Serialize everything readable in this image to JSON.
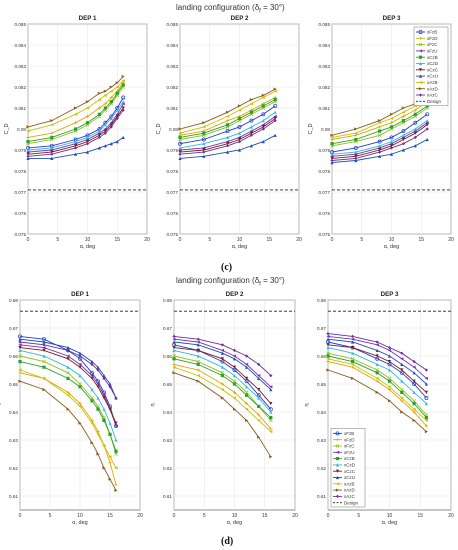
{
  "figure": {
    "top_title": "landing configuration (δ",
    "top_title_sub": "f",
    "top_title_end": " = 30°)",
    "top_label": "(c)",
    "bottom_title": "landing configuration (δ",
    "bottom_title_sub": "f",
    "bottom_title_end": " = 30°)",
    "bottom_label": "(d)"
  },
  "colors": {
    "xFzB": "#1f3fd1",
    "xFzD": "#e0a800",
    "xFzC": "#8fc31f",
    "xFzU": "#7b2fb5",
    "xCzB": "#2ca02c",
    "xCzD": "#33b7e8",
    "xCzC": "#7a1f1f",
    "xCzU": "#1f4fb5",
    "xAzB": "#c9c300",
    "xAzD": "#8a5a1f",
    "xAzC": "#6a2fa0",
    "design": "#222222"
  },
  "chart_data": [
    {
      "type": "line",
      "panel": "c",
      "title": "DEP 1",
      "xlabel": "α, deg",
      "ylabel": "C_D",
      "xlim": [
        0,
        20
      ],
      "ylim": [
        0.075,
        0.085
      ],
      "xticks": [
        "0",
        "5",
        "10",
        "15",
        "20"
      ],
      "yticks": [
        "0.075",
        "0.076",
        "0.077",
        "0.078",
        "0.079",
        "0.08",
        "0.081",
        "0.082",
        "0.083",
        "0.084",
        "0.085"
      ],
      "grid": true,
      "x": [
        0,
        4,
        8,
        10,
        12,
        13,
        14,
        15,
        16
      ],
      "series": [
        {
          "name": "xFzB",
          "values": [
            0.0791,
            0.0792,
            0.0795,
            0.0797,
            0.08,
            0.0803,
            0.0806,
            0.081,
            0.0815
          ]
        },
        {
          "name": "xFzD",
          "values": [
            0.0796,
            0.0798,
            0.0803,
            0.0806,
            0.081,
            0.0812,
            0.0815,
            0.0818,
            0.0822
          ]
        },
        {
          "name": "xFzC",
          "values": [
            0.0793,
            0.0795,
            0.0799,
            0.0802,
            0.0806,
            0.0809,
            0.0812,
            0.0816,
            0.082
          ]
        },
        {
          "name": "xFzU",
          "values": [
            0.0789,
            0.079,
            0.0793,
            0.0795,
            0.0798,
            0.08,
            0.0803,
            0.0807,
            0.0812
          ]
        },
        {
          "name": "xCzB",
          "values": [
            0.0794,
            0.0796,
            0.08,
            0.0803,
            0.0807,
            0.081,
            0.0813,
            0.0817,
            0.0821
          ]
        },
        {
          "name": "xCzD",
          "values": [
            0.079,
            0.0791,
            0.0794,
            0.0796,
            0.0799,
            0.0802,
            0.0805,
            0.0809,
            0.0813
          ]
        },
        {
          "name": "xCzC",
          "values": [
            0.0788,
            0.0789,
            0.0792,
            0.0794,
            0.0797,
            0.0799,
            0.0802,
            0.0806,
            0.081
          ]
        },
        {
          "name": "xCzU",
          "values": [
            0.0786,
            0.0786,
            0.0788,
            0.0789,
            0.0791,
            0.0792,
            0.0793,
            0.0794,
            0.0796
          ]
        },
        {
          "name": "xAzB",
          "values": [
            0.0799,
            0.0802,
            0.0807,
            0.081,
            0.0814,
            0.0816,
            0.0818,
            0.082,
            0.0823
          ]
        },
        {
          "name": "xAzD",
          "values": [
            0.0801,
            0.0804,
            0.081,
            0.0813,
            0.0817,
            0.0818,
            0.082,
            0.0822,
            0.0825
          ]
        },
        {
          "name": "xAzC",
          "values": [
            0.0787,
            0.0788,
            0.0791,
            0.0793,
            0.0796,
            0.0798,
            0.0801,
            0.0805,
            0.0809
          ]
        }
      ],
      "design": 0.0771
    },
    {
      "type": "line",
      "panel": "c",
      "title": "DEP 2",
      "xlabel": "α, deg",
      "ylabel": "C_D",
      "xlim": [
        0,
        20
      ],
      "ylim": [
        0.075,
        0.085
      ],
      "xticks": [
        "0",
        "5",
        "10",
        "15",
        "20"
      ],
      "yticks": [
        "0.075",
        "0.076",
        "0.077",
        "0.078",
        "0.079",
        "0.08",
        "0.081",
        "0.082",
        "0.083",
        "0.084",
        "0.085"
      ],
      "grid": true,
      "x": [
        0,
        4,
        8,
        10,
        12,
        14,
        16
      ],
      "series": [
        {
          "name": "xFzB",
          "values": [
            0.0793,
            0.0795,
            0.0799,
            0.0801,
            0.0804,
            0.0807,
            0.0811
          ]
        },
        {
          "name": "xFzD",
          "values": [
            0.0797,
            0.0799,
            0.0804,
            0.0806,
            0.0809,
            0.0812,
            0.0815
          ]
        },
        {
          "name": "xFzC",
          "values": [
            0.0795,
            0.0797,
            0.0801,
            0.0804,
            0.0807,
            0.081,
            0.0813
          ]
        },
        {
          "name": "xFzU",
          "values": [
            0.079,
            0.0791,
            0.0794,
            0.0796,
            0.0799,
            0.0802,
            0.0806
          ]
        },
        {
          "name": "xCzB",
          "values": [
            0.0796,
            0.0798,
            0.0802,
            0.0805,
            0.0808,
            0.0811,
            0.0814
          ]
        },
        {
          "name": "xCzD",
          "values": [
            0.0791,
            0.0793,
            0.0796,
            0.0798,
            0.0801,
            0.0804,
            0.0808
          ]
        },
        {
          "name": "xCzC",
          "values": [
            0.0789,
            0.079,
            0.0793,
            0.0795,
            0.0798,
            0.0801,
            0.0805
          ]
        },
        {
          "name": "xCzU",
          "values": [
            0.0786,
            0.0787,
            0.0789,
            0.079,
            0.0792,
            0.0794,
            0.0797
          ]
        },
        {
          "name": "xAzB",
          "values": [
            0.0798,
            0.0801,
            0.0806,
            0.0809,
            0.0812,
            0.0815,
            0.0818
          ]
        },
        {
          "name": "xAzD",
          "values": [
            0.08,
            0.0803,
            0.0808,
            0.0811,
            0.0814,
            0.0816,
            0.0819
          ]
        },
        {
          "name": "xAzC",
          "values": [
            0.0788,
            0.0789,
            0.0792,
            0.0794,
            0.0797,
            0.08,
            0.0804
          ]
        }
      ],
      "design": 0.0771
    },
    {
      "type": "line",
      "panel": "c",
      "title": "DEP 3",
      "xlabel": "α, deg",
      "ylabel": "C_D",
      "xlim": [
        0,
        20
      ],
      "ylim": [
        0.075,
        0.085
      ],
      "xticks": [
        "0",
        "5",
        "10",
        "15",
        "20"
      ],
      "yticks": [
        "0.075",
        "0.076",
        "0.077",
        "0.078",
        "0.079",
        "0.08",
        "0.081",
        "0.082",
        "0.083",
        "0.084",
        "0.085"
      ],
      "grid": true,
      "legend": "top-right",
      "x": [
        0,
        4,
        8,
        10,
        12,
        14,
        16
      ],
      "series": [
        {
          "name": "xFzB",
          "values": [
            0.0789,
            0.0791,
            0.0794,
            0.0796,
            0.0799,
            0.0803,
            0.0807
          ]
        },
        {
          "name": "xFzD",
          "values": [
            0.0795,
            0.0797,
            0.0801,
            0.0803,
            0.0806,
            0.0809,
            0.0813
          ]
        },
        {
          "name": "xFzC",
          "values": [
            0.0792,
            0.0794,
            0.0797,
            0.08,
            0.0803,
            0.0806,
            0.081
          ]
        },
        {
          "name": "xFzU",
          "values": [
            0.0787,
            0.0788,
            0.0791,
            0.0793,
            0.0796,
            0.0799,
            0.0803
          ]
        },
        {
          "name": "xCzB",
          "values": [
            0.0793,
            0.0795,
            0.0799,
            0.0801,
            0.0804,
            0.0807,
            0.0811
          ]
        },
        {
          "name": "xCzD",
          "values": [
            0.0788,
            0.0789,
            0.0792,
            0.0794,
            0.0797,
            0.08,
            0.0804
          ]
        },
        {
          "name": "xCzC",
          "values": [
            0.0786,
            0.0787,
            0.079,
            0.0792,
            0.0795,
            0.0798,
            0.0802
          ]
        },
        {
          "name": "xCzU",
          "values": [
            0.0784,
            0.0785,
            0.0787,
            0.0788,
            0.079,
            0.0792,
            0.0795
          ]
        },
        {
          "name": "xAzB",
          "values": [
            0.0796,
            0.0798,
            0.0803,
            0.0805,
            0.0808,
            0.0811,
            0.0814
          ]
        },
        {
          "name": "xAzD",
          "values": [
            0.0797,
            0.08,
            0.0804,
            0.0807,
            0.081,
            0.0812,
            0.0815
          ]
        },
        {
          "name": "xAzC",
          "values": [
            0.0785,
            0.0786,
            0.0789,
            0.0791,
            0.0793,
            0.0796,
            0.08
          ]
        }
      ],
      "design": 0.0771,
      "legend_design_label": "Design"
    },
    {
      "type": "line",
      "panel": "d",
      "title": "DEP 1",
      "xlabel": "α, deg",
      "ylabel": "η",
      "xlim": [
        0,
        20
      ],
      "ylim": [
        0.605,
        0.68
      ],
      "xticks": [
        "0",
        "5",
        "10",
        "15",
        "20"
      ],
      "yticks": [
        "0.61",
        "0.62",
        "0.63",
        "0.64",
        "0.65",
        "0.66",
        "0.67",
        "0.68"
      ],
      "grid": true,
      "x": [
        0,
        4,
        8,
        10,
        12,
        13,
        14,
        15,
        16
      ],
      "series": [
        {
          "name": "xFzB",
          "values": [
            0.667,
            0.666,
            0.662,
            0.659,
            0.654,
            0.651,
            0.647,
            0.642,
            0.635
          ]
        },
        {
          "name": "xFzD",
          "values": [
            0.654,
            0.652,
            0.647,
            0.643,
            0.637,
            0.633,
            0.628,
            0.622,
            0.614
          ]
        },
        {
          "name": "xFzC",
          "values": [
            0.66,
            0.658,
            0.654,
            0.65,
            0.645,
            0.642,
            0.638,
            0.632,
            0.625
          ]
        },
        {
          "name": "xFzU",
          "values": [
            0.664,
            0.663,
            0.66,
            0.657,
            0.653,
            0.65,
            0.646,
            0.641,
            0.635
          ]
        },
        {
          "name": "xCzB",
          "values": [
            0.658,
            0.656,
            0.652,
            0.649,
            0.644,
            0.641,
            0.637,
            0.632,
            0.626
          ]
        },
        {
          "name": "xCzD",
          "values": [
            0.662,
            0.66,
            0.656,
            0.653,
            0.648,
            0.645,
            0.641,
            0.636,
            0.63
          ]
        },
        {
          "name": "xCzC",
          "values": [
            0.663,
            0.662,
            0.659,
            0.656,
            0.652,
            0.649,
            0.645,
            0.641,
            0.636
          ]
        },
        {
          "name": "xCzU",
          "values": [
            0.666,
            0.665,
            0.663,
            0.661,
            0.658,
            0.656,
            0.653,
            0.65,
            0.645
          ]
        },
        {
          "name": "xAzB",
          "values": [
            0.655,
            0.652,
            0.646,
            0.642,
            0.636,
            0.632,
            0.628,
            0.624,
            0.62
          ]
        },
        {
          "name": "xAzD",
          "values": [
            0.651,
            0.648,
            0.641,
            0.636,
            0.629,
            0.625,
            0.62,
            0.616,
            0.612
          ]
        },
        {
          "name": "xAzC",
          "values": [
            0.665,
            0.664,
            0.662,
            0.66,
            0.657,
            0.655,
            0.652,
            0.649,
            0.645
          ]
        }
      ],
      "design": 0.676
    },
    {
      "type": "line",
      "panel": "d",
      "title": "DEP 2",
      "xlabel": "α, deg",
      "ylabel": "η",
      "xlim": [
        0,
        20
      ],
      "ylim": [
        0.605,
        0.68
      ],
      "xticks": [
        "0",
        "5",
        "10",
        "15",
        "20"
      ],
      "yticks": [
        "0.61",
        "0.62",
        "0.63",
        "0.64",
        "0.65",
        "0.66",
        "0.67",
        "0.68"
      ],
      "grid": true,
      "x": [
        0,
        4,
        8,
        10,
        12,
        14,
        16
      ],
      "series": [
        {
          "name": "xFzB",
          "values": [
            0.664,
            0.662,
            0.658,
            0.655,
            0.651,
            0.646,
            0.641
          ]
        },
        {
          "name": "xFzD",
          "values": [
            0.657,
            0.655,
            0.65,
            0.647,
            0.643,
            0.639,
            0.634
          ]
        },
        {
          "name": "xFzC",
          "values": [
            0.66,
            0.658,
            0.654,
            0.651,
            0.647,
            0.642,
            0.637
          ]
        },
        {
          "name": "xFzU",
          "values": [
            0.666,
            0.665,
            0.662,
            0.66,
            0.657,
            0.653,
            0.649
          ]
        },
        {
          "name": "xCzB",
          "values": [
            0.659,
            0.657,
            0.653,
            0.65,
            0.646,
            0.642,
            0.638
          ]
        },
        {
          "name": "xCzD",
          "values": [
            0.662,
            0.66,
            0.656,
            0.653,
            0.649,
            0.645,
            0.64
          ]
        },
        {
          "name": "xCzC",
          "values": [
            0.663,
            0.662,
            0.659,
            0.656,
            0.652,
            0.648,
            0.643
          ]
        },
        {
          "name": "xCzU",
          "values": [
            0.665,
            0.664,
            0.661,
            0.659,
            0.656,
            0.652,
            0.648
          ]
        },
        {
          "name": "xAzB",
          "values": [
            0.656,
            0.653,
            0.648,
            0.645,
            0.641,
            0.637,
            0.633
          ]
        },
        {
          "name": "xAzD",
          "values": [
            0.654,
            0.651,
            0.645,
            0.641,
            0.637,
            0.631,
            0.624
          ]
        },
        {
          "name": "xAzC",
          "values": [
            0.667,
            0.666,
            0.664,
            0.662,
            0.66,
            0.657,
            0.653
          ]
        }
      ],
      "design": 0.676
    },
    {
      "type": "line",
      "panel": "d",
      "title": "DEP 3",
      "xlabel": "α, deg",
      "ylabel": "η",
      "xlim": [
        0,
        20
      ],
      "ylim": [
        0.605,
        0.68
      ],
      "xticks": [
        "0",
        "5",
        "10",
        "15",
        "20"
      ],
      "yticks": [
        "0.61",
        "0.62",
        "0.63",
        "0.64",
        "0.65",
        "0.66",
        "0.67",
        "0.68"
      ],
      "grid": true,
      "legend": "bottom-left",
      "x": [
        0,
        4,
        8,
        10,
        12,
        14,
        16
      ],
      "series": [
        {
          "name": "xFzB",
          "values": [
            0.665,
            0.663,
            0.659,
            0.657,
            0.654,
            0.65,
            0.645
          ]
        },
        {
          "name": "xFzD",
          "values": [
            0.658,
            0.656,
            0.651,
            0.648,
            0.644,
            0.64,
            0.635
          ]
        },
        {
          "name": "xFzC",
          "values": [
            0.661,
            0.659,
            0.655,
            0.652,
            0.648,
            0.644,
            0.639
          ]
        },
        {
          "name": "xFzU",
          "values": [
            0.667,
            0.666,
            0.664,
            0.662,
            0.659,
            0.656,
            0.652
          ]
        },
        {
          "name": "xCzB",
          "values": [
            0.66,
            0.658,
            0.654,
            0.651,
            0.647,
            0.643,
            0.638
          ]
        },
        {
          "name": "xCzD",
          "values": [
            0.663,
            0.661,
            0.657,
            0.655,
            0.651,
            0.647,
            0.643
          ]
        },
        {
          "name": "xCzC",
          "values": [
            0.664,
            0.663,
            0.66,
            0.658,
            0.655,
            0.651,
            0.647
          ]
        },
        {
          "name": "xCzU",
          "values": [
            0.666,
            0.665,
            0.662,
            0.66,
            0.657,
            0.654,
            0.65
          ]
        },
        {
          "name": "xAzB",
          "values": [
            0.659,
            0.657,
            0.652,
            0.649,
            0.645,
            0.641,
            0.637
          ]
        },
        {
          "name": "xAzD",
          "values": [
            0.655,
            0.652,
            0.647,
            0.644,
            0.64,
            0.637,
            0.633
          ]
        },
        {
          "name": "xAzC",
          "values": [
            0.668,
            0.667,
            0.665,
            0.663,
            0.661,
            0.658,
            0.655
          ]
        }
      ],
      "design": 0.676,
      "legend_design_label": "Design"
    }
  ]
}
